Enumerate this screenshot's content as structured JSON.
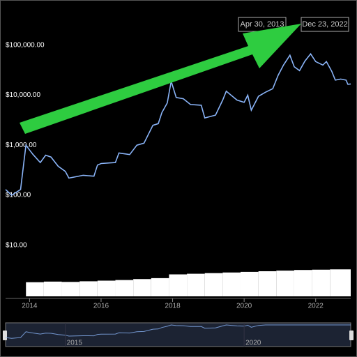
{
  "chart_data": {
    "type": "line",
    "range_start": "Apr 30, 2013",
    "range_end": "Dec 23, 2022",
    "x": [
      2013.33,
      2013.5,
      2013.75,
      2013.9,
      2014.0,
      2014.1,
      2014.3,
      2014.45,
      2014.6,
      2014.8,
      2015.0,
      2015.1,
      2015.5,
      2015.8,
      2015.9,
      2016.0,
      2016.4,
      2016.5,
      2016.8,
      2017.0,
      2017.2,
      2017.45,
      2017.6,
      2017.7,
      2017.85,
      2017.96,
      2018.1,
      2018.3,
      2018.5,
      2018.8,
      2018.9,
      2019.2,
      2019.4,
      2019.5,
      2019.8,
      2020.0,
      2020.1,
      2020.2,
      2020.4,
      2020.6,
      2020.8,
      2020.95,
      2021.1,
      2021.28,
      2021.4,
      2021.55,
      2021.7,
      2021.86,
      2022.0,
      2022.2,
      2022.3,
      2022.45,
      2022.55,
      2022.7,
      2022.85,
      2022.9,
      2022.98
    ],
    "values": [
      130,
      100,
      130,
      1000,
      800,
      650,
      450,
      630,
      580,
      380,
      300,
      220,
      250,
      240,
      400,
      430,
      450,
      700,
      650,
      1000,
      1100,
      2500,
      2700,
      4500,
      7000,
      19000,
      9000,
      8500,
      6500,
      6300,
      3500,
      4000,
      8000,
      12000,
      8000,
      7200,
      10000,
      5000,
      9500,
      11500,
      13500,
      25000,
      40000,
      63000,
      37000,
      31000,
      48000,
      67000,
      47000,
      40000,
      47000,
      30000,
      20000,
      21000,
      20000,
      16500,
      16800
    ],
    "color": "#8ab4f8",
    "log_scale": true,
    "xlim": [
      2013.33,
      2022.98
    ],
    "xticks": [
      2014,
      2016,
      2018,
      2020,
      2022
    ],
    "ylim": [
      9,
      800000
    ],
    "yticks": [
      {
        "value": 10,
        "label": "$10.00"
      },
      {
        "value": 100,
        "label": "$100.00"
      },
      {
        "value": 1000,
        "label": "$1,000.00"
      },
      {
        "value": 10000,
        "label": "$10,000.00"
      },
      {
        "value": 100000,
        "label": "$100,000.00"
      }
    ],
    "volume": {
      "x": [
        2013.9,
        2014.4,
        2014.9,
        2015.4,
        2015.9,
        2016.4,
        2016.9,
        2017.4,
        2017.9,
        2018.4,
        2018.9,
        2019.4,
        2019.9,
        2020.4,
        2020.9,
        2021.4,
        2021.9,
        2022.4
      ],
      "values": [
        45,
        47,
        46,
        48,
        50,
        52,
        55,
        58,
        70,
        72,
        74,
        76,
        78,
        80,
        82,
        84,
        85,
        86
      ],
      "ylim": [
        0,
        100
      ],
      "color": "#ffffff"
    },
    "navigator": {
      "xticks": [
        2015,
        2020
      ]
    }
  }
}
